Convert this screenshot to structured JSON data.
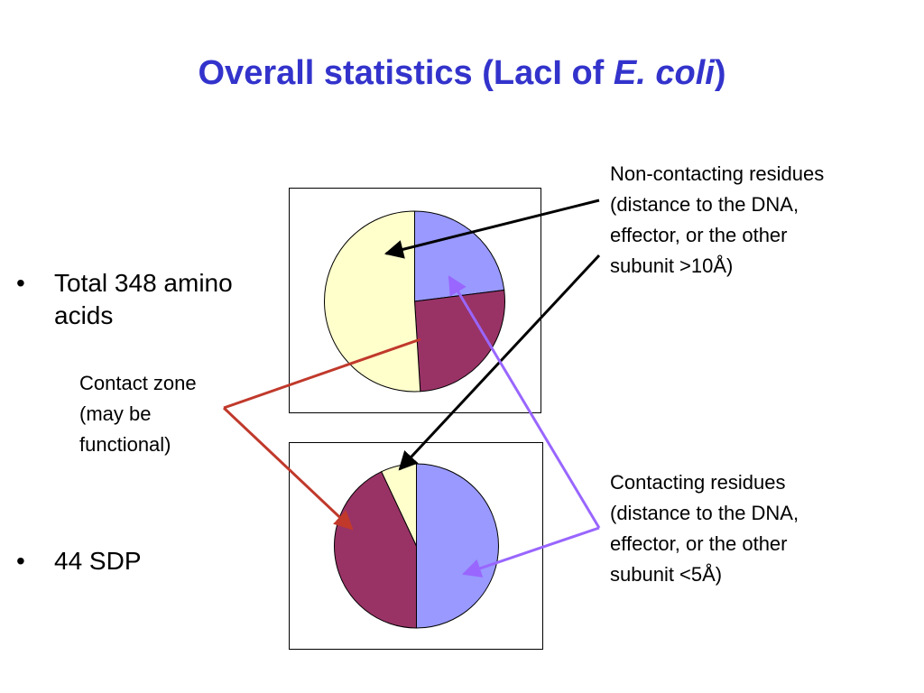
{
  "slide": {
    "title_main": "Overall statistics (LacI of ",
    "title_italic": "E. coli",
    "title_end": ")",
    "bullets": [
      {
        "marker": "•",
        "lines": [
          "Total 348 amino",
          "acids"
        ]
      },
      {
        "marker": "•",
        "lines": [
          "44 SDP"
        ]
      }
    ],
    "contact_zone_lines": [
      "Contact zone",
      "(may be",
      "functional)"
    ],
    "noncontacting_lines": [
      "Non-contacting residues",
      "(distance to the DNA,",
      "effector, or the other",
      "subunit >10Å)"
    ],
    "contacting_lines": [
      "Contacting residues",
      "(distance to the DNA,",
      "effector, or the other",
      "subunit <5Å)"
    ]
  },
  "colors": {
    "title": "#3333cc",
    "contacting": "#9999ff",
    "contact_zone": "#993366",
    "noncontacting": "#ffffcc",
    "arrow_black": "#000000",
    "arrow_red": "#c0392b",
    "arrow_purple": "#9966ff"
  },
  "chart_data": [
    {
      "type": "pie",
      "title": "",
      "categories": [
        "Contacting residues",
        "Contact zone",
        "Non-contacting residues"
      ],
      "values": [
        23,
        26,
        51
      ],
      "colors": [
        "#9999ff",
        "#993366",
        "#ffffcc"
      ]
    },
    {
      "type": "pie",
      "title": "",
      "categories": [
        "Contacting residues",
        "Contact zone",
        "Non-contacting residues"
      ],
      "values": [
        50,
        43,
        7
      ],
      "colors": [
        "#9999ff",
        "#993366",
        "#ffffcc"
      ]
    }
  ]
}
